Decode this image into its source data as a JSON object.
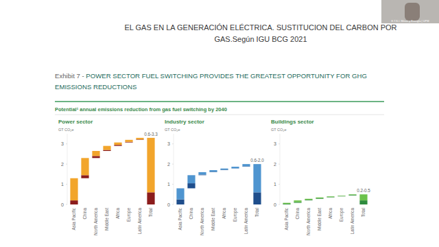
{
  "slide_title": [
    "EL GAS EN LA GENERACIÓN ELÉCTRICA. SUSTITUCION DEL CARBON POR",
    "GAS.Según IGU BCG 2021"
  ],
  "exhibit_label": "Exhibit 7 - ",
  "exhibit_title": [
    "POWER SECTOR FUEL SWITCHING PROVIDES THE GREATEST OPPORTUNITY FOR GHG",
    "EMISSIONS REDUCTIONS"
  ],
  "subtitle": "Potential¹ annual emissions reduction from gas fuel switching by 2040",
  "webcam_caption": "E.T.S.I. Minas y Energía | UPM",
  "chart_data": [
    {
      "type": "waterfall",
      "title": "Power sector",
      "y_label": "GT CO₂e",
      "stacked": true,
      "categories": [
        "Asia Pacific",
        "China",
        "North America",
        "Middle East",
        "Africa",
        "Europe",
        "Latin America",
        "Total"
      ],
      "series": [
        {
          "color": "#8b1c1c",
          "values": [
            0.2,
            0.15,
            0.1,
            0.05,
            0.05,
            0.03,
            0.02,
            0.6
          ]
        },
        {
          "color": "#f2a52b",
          "values": [
            1.1,
            0.85,
            0.25,
            0.2,
            0.12,
            0.1,
            0.08,
            2.7
          ]
        }
      ],
      "annotation": "0.6-3.3",
      "ylim": [
        0,
        3.5
      ],
      "yticks": [
        0,
        1,
        2,
        3
      ],
      "grid": false
    },
    {
      "type": "waterfall",
      "title": "Industry sector",
      "y_label": "GT CO₂e",
      "stacked": true,
      "categories": [
        "Asia Pacific",
        "China",
        "North America",
        "Middle East",
        "Africa",
        "Europe",
        "Latin America",
        "Total"
      ],
      "series": [
        {
          "color": "#1f4e8c",
          "values": [
            0.25,
            0.25,
            0.03,
            0.02,
            0.02,
            0.01,
            0.02,
            0.6
          ]
        },
        {
          "color": "#4f95d0",
          "values": [
            0.55,
            0.4,
            0.12,
            0.08,
            0.06,
            0.08,
            0.11,
            1.4
          ]
        }
      ],
      "annotation": "0.6-2.0",
      "ylim": [
        0,
        3.5
      ],
      "yticks": [
        0,
        1,
        2,
        3
      ],
      "grid": false
    },
    {
      "type": "waterfall",
      "title": "Buildings sector",
      "y_label": "GT CO₂e",
      "stacked": true,
      "categories": [
        "Asia Pacific",
        "China",
        "North America",
        "Middle East",
        "Africa",
        "Europe",
        "Latin America",
        "Total"
      ],
      "series": [
        {
          "color": "#2e8b3e",
          "values": [
            0.03,
            0.04,
            0.03,
            0.03,
            0.02,
            0.02,
            0.03,
            0.2
          ]
        },
        {
          "color": "#6cc24a",
          "values": [
            0.05,
            0.08,
            0.05,
            0.04,
            0.03,
            0.02,
            0.03,
            0.3
          ]
        }
      ],
      "annotation": "0.2-0.5",
      "ylim": [
        0,
        3.5
      ],
      "yticks": [
        0,
        1,
        2,
        3
      ],
      "grid": false
    }
  ]
}
